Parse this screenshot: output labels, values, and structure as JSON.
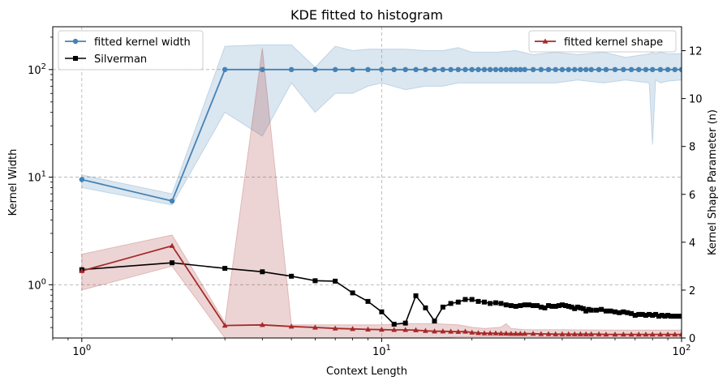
{
  "chart_data": {
    "type": "line",
    "title": "KDE fitted to histogram",
    "xlabel": "Context Length",
    "ylabel": "Kernel Width",
    "y2label": "Kernel Shape Parameter (n)",
    "xscale": "log",
    "yscale": "log",
    "xlim": [
      0.8,
      100
    ],
    "ylim": [
      0.32,
      250
    ],
    "y2lim": [
      0,
      13
    ],
    "grid": true,
    "xticks": [
      {
        "value": 1,
        "label": "10",
        "exp": "0"
      },
      {
        "value": 10,
        "label": "10",
        "exp": "1"
      },
      {
        "value": 100,
        "label": "10",
        "exp": "2"
      }
    ],
    "yticks": [
      {
        "value": 1,
        "label": "10",
        "exp": "0"
      },
      {
        "value": 10,
        "label": "10",
        "exp": "1"
      },
      {
        "value": 100,
        "label": "10",
        "exp": "2"
      }
    ],
    "y2ticks": [
      0,
      2,
      4,
      6,
      8,
      10,
      12
    ],
    "legend_left": {
      "placement": "upper-left",
      "entries": [
        "fitted kernel width",
        "Silverman"
      ]
    },
    "legend_right": {
      "placement": "upper-right",
      "entries": [
        "fitted kernel shape"
      ]
    },
    "colors": {
      "width": "#4682b4",
      "silverman": "#000000",
      "shape": "#a52a2a"
    },
    "series": [
      {
        "name": "fitted kernel width",
        "axis": "left",
        "marker": "circle",
        "x": [
          1,
          2,
          3,
          4,
          5,
          6,
          7,
          8,
          9,
          10,
          11,
          12,
          13,
          14,
          15,
          16,
          17,
          18,
          19,
          20,
          21,
          22,
          23,
          24,
          25,
          26,
          27,
          28,
          29,
          30,
          32,
          34,
          36,
          38,
          40,
          42,
          44,
          46,
          48,
          50,
          53,
          56,
          60,
          64,
          68,
          72,
          76,
          80,
          85,
          90,
          95,
          100
        ],
        "y": [
          9.5,
          6.0,
          100,
          100,
          100,
          100,
          100,
          100,
          100,
          100,
          100,
          100,
          100,
          100,
          100,
          100,
          100,
          100,
          100,
          100,
          100,
          100,
          100,
          100,
          100,
          100,
          100,
          100,
          100,
          100,
          100,
          100,
          100,
          100,
          100,
          100,
          100,
          100,
          100,
          100,
          100,
          100,
          100,
          100,
          100,
          100,
          100,
          100,
          100,
          100,
          100,
          100
        ],
        "band_x": [
          1,
          2,
          3,
          4,
          5,
          6,
          7,
          8,
          9,
          10,
          12,
          14,
          16,
          18,
          20,
          24,
          28,
          32,
          38,
          45,
          55,
          65,
          78,
          80,
          82,
          85,
          90,
          100
        ],
        "band_upper": [
          10.5,
          7.0,
          165,
          170,
          170,
          105,
          165,
          150,
          155,
          155,
          155,
          150,
          150,
          160,
          145,
          145,
          150,
          138,
          145,
          138,
          145,
          130,
          140,
          145,
          140,
          145,
          140,
          140
        ],
        "band_lower": [
          8.0,
          5.5,
          40,
          24,
          75,
          40,
          60,
          60,
          70,
          75,
          65,
          70,
          70,
          75,
          75,
          75,
          75,
          75,
          75,
          80,
          75,
          80,
          75,
          20,
          80,
          75,
          78,
          80
        ]
      },
      {
        "name": "Silverman",
        "axis": "left",
        "marker": "square",
        "x": [
          1,
          2,
          3,
          4,
          5,
          6,
          7,
          8,
          9,
          10,
          11,
          12,
          13,
          14,
          15,
          16,
          17,
          18,
          19,
          20,
          21,
          22,
          23,
          24,
          25,
          26,
          27,
          28,
          29,
          30,
          31,
          32,
          33,
          34,
          35,
          36,
          37,
          38,
          39,
          40,
          41,
          42,
          43,
          44,
          45,
          46,
          47,
          48,
          49,
          50,
          52,
          54,
          56,
          58,
          60,
          62,
          64,
          66,
          68,
          70,
          72,
          74,
          76,
          78,
          80,
          82,
          84,
          86,
          88,
          90,
          92,
          94,
          96,
          98,
          100
        ],
        "y": [
          1.38,
          1.6,
          1.42,
          1.32,
          1.2,
          1.09,
          1.08,
          0.84,
          0.7,
          0.56,
          0.43,
          0.44,
          0.79,
          0.61,
          0.46,
          0.62,
          0.67,
          0.69,
          0.73,
          0.73,
          0.7,
          0.69,
          0.67,
          0.68,
          0.67,
          0.65,
          0.64,
          0.63,
          0.64,
          0.65,
          0.65,
          0.64,
          0.64,
          0.62,
          0.61,
          0.64,
          0.63,
          0.63,
          0.64,
          0.65,
          0.64,
          0.63,
          0.62,
          0.6,
          0.62,
          0.61,
          0.6,
          0.57,
          0.59,
          0.58,
          0.58,
          0.59,
          0.57,
          0.57,
          0.56,
          0.55,
          0.56,
          0.55,
          0.54,
          0.52,
          0.53,
          0.53,
          0.52,
          0.53,
          0.52,
          0.53,
          0.51,
          0.52,
          0.51,
          0.52,
          0.51,
          0.51,
          0.51,
          0.51,
          0.51
        ]
      },
      {
        "name": "fitted kernel shape",
        "axis": "right",
        "marker": "triangle",
        "x": [
          1,
          2,
          3,
          4,
          5,
          6,
          7,
          8,
          9,
          10,
          11,
          12,
          13,
          14,
          15,
          16,
          17,
          18,
          19,
          20,
          21,
          22,
          23,
          24,
          25,
          26,
          27,
          28,
          29,
          30,
          32,
          34,
          36,
          38,
          40,
          42,
          44,
          46,
          48,
          50,
          53,
          56,
          60,
          64,
          68,
          72,
          76,
          80,
          85,
          90,
          95,
          100
        ],
        "y": [
          2.8,
          3.85,
          0.52,
          0.55,
          0.48,
          0.44,
          0.4,
          0.38,
          0.36,
          0.35,
          0.34,
          0.34,
          0.33,
          0.3,
          0.28,
          0.28,
          0.27,
          0.26,
          0.27,
          0.23,
          0.21,
          0.2,
          0.2,
          0.2,
          0.19,
          0.19,
          0.18,
          0.18,
          0.18,
          0.18,
          0.18,
          0.17,
          0.17,
          0.16,
          0.16,
          0.16,
          0.16,
          0.16,
          0.16,
          0.16,
          0.16,
          0.15,
          0.15,
          0.15,
          0.15,
          0.15,
          0.15,
          0.15,
          0.15,
          0.15,
          0.15,
          0.15
        ],
        "band_x": [
          1,
          2,
          3,
          4,
          5,
          6,
          7,
          8,
          9,
          10,
          12,
          15,
          18,
          20,
          22,
          25,
          26,
          27,
          30,
          40,
          60,
          100
        ],
        "band_upper": [
          3.5,
          4.3,
          0.65,
          12.1,
          0.55,
          0.55,
          0.55,
          0.55,
          0.55,
          0.55,
          0.6,
          0.6,
          0.55,
          0.45,
          0.4,
          0.45,
          0.6,
          0.4,
          0.35,
          0.35,
          0.33,
          0.33
        ],
        "band_lower": [
          2.0,
          3.0,
          0.0,
          0.0,
          0.0,
          0.0,
          0.0,
          0.0,
          0.0,
          0.0,
          0.0,
          0.0,
          0.05,
          0.05,
          0.05,
          0.05,
          0.05,
          0.05,
          0.05,
          0.05,
          0.05,
          0.05
        ]
      }
    ]
  }
}
